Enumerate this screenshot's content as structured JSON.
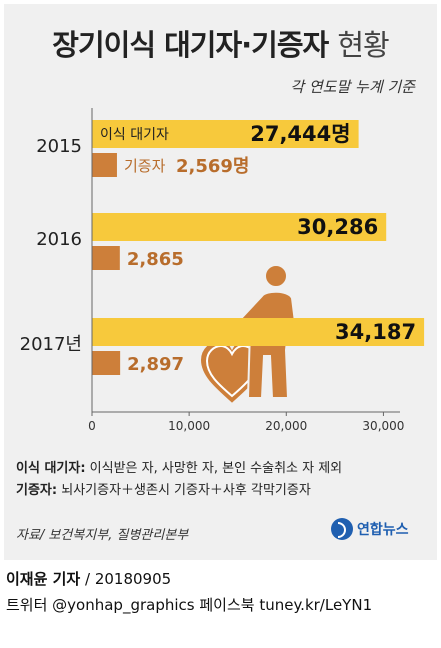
{
  "header": {
    "title_main": "장기이식 대기자·기증자",
    "title_suffix": "현황",
    "subtitle": "각 연도말 누계 기준"
  },
  "chart_data": {
    "type": "bar",
    "orientation": "horizontal",
    "categories": [
      "2015",
      "2016",
      "2017년"
    ],
    "series": [
      {
        "name": "이식 대기자",
        "values": [
          27444,
          30286,
          34187
        ],
        "color": "#f7c93c"
      },
      {
        "name": "기증자",
        "values": [
          2569,
          2865,
          2897
        ],
        "color": "#cd7f3a"
      }
    ],
    "value_labels": {
      "waiting": [
        "27,444명",
        "30,286",
        "34,187"
      ],
      "donor": [
        "2,569명",
        "2,865",
        "2,897"
      ]
    },
    "inline_series_labels": {
      "waiting": "이식 대기자",
      "donor": "기증자"
    },
    "xlim": [
      0,
      35000
    ],
    "xticks": [
      0,
      10000,
      20000,
      30000
    ],
    "xtick_labels": [
      "0",
      "10,000",
      "20,000",
      "30,000"
    ],
    "grid": false
  },
  "notes": {
    "waiting_term": "이식 대기자:",
    "waiting_desc": "이식받은 자, 사망한 자, 본인 수술취소 자 제외",
    "donor_term": "기증자:",
    "donor_desc": "뇌사기증자＋생존시 기증자＋사후 각막기증자"
  },
  "source": "자료/ 보건복지부, 질병관리본부",
  "logo": {
    "text": "연합뉴스"
  },
  "credit": {
    "author": "이재윤 기자",
    "date": " / 20180905",
    "social": "트위터 @yonhap_graphics  페이스북 tuney.kr/LeYN1"
  }
}
